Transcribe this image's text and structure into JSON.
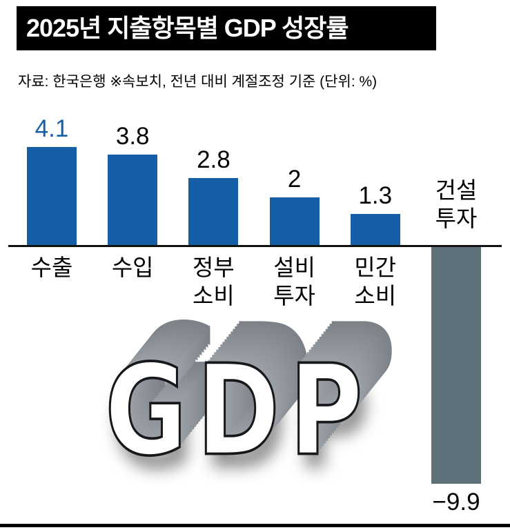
{
  "header": {
    "title": "2025년 지출항목별 GDP 성장률"
  },
  "source_note": "자료: 한국은행  ※속보치, 전년 대비 계절조정 기준  (단위: %)",
  "watermark_text": "GDP",
  "colors": {
    "title_bg": "#000000",
    "title_text": "#ffffff",
    "bar_positive": "#155fa6",
    "bar_negative": "#5e7079",
    "value_highlight": "#155fa6",
    "value_text": "#000000",
    "axis_line": "#111111"
  },
  "chart_data": {
    "type": "bar",
    "title": "2025년 지출항목별 GDP 성장률",
    "source": "자료: 한국은행 ※속보치, 전년 대비 계절조정 기준 (단위: %)",
    "unit": "%",
    "categories": [
      "수출",
      "수입",
      "정부소비",
      "설비투자",
      "민간소비",
      "건설투자"
    ],
    "category_labels": [
      "수출",
      "수입",
      "정부\n소비",
      "설비\n투자",
      "민간\n소비",
      "건설\n투자"
    ],
    "values": [
      4.1,
      3.8,
      2.8,
      2,
      1.3,
      -9.9
    ],
    "value_labels": [
      "4.1",
      "3.8",
      "2.8",
      "2",
      "1.3",
      "−9.9"
    ],
    "highlight_index": 0,
    "xlabel": "",
    "ylabel": "",
    "ylim": [
      -10.5,
      4.5
    ],
    "grid": false,
    "legend": "none"
  }
}
